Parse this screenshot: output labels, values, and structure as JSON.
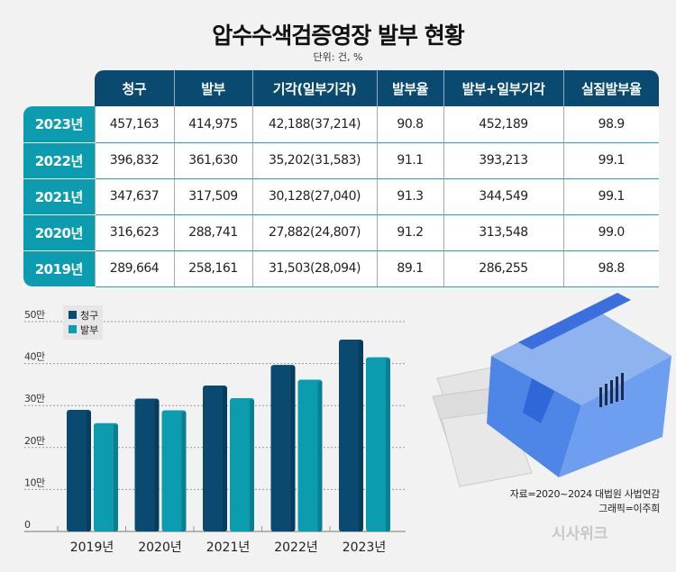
{
  "title": "압수수색검증영장 발부 현황",
  "unit": "단위: 건, %",
  "table": {
    "headers": [
      "청구",
      "발부",
      "기각(일부기각)",
      "발부율",
      "발부+일부기각",
      "실질발부율"
    ],
    "rows": [
      {
        "year": "2023년",
        "cells": [
          "457,163",
          "414,975",
          "42,188(37,214)",
          "90.8",
          "452,189",
          "98.9"
        ]
      },
      {
        "year": "2022년",
        "cells": [
          "396,832",
          "361,630",
          "35,202(31,583)",
          "91.1",
          "393,213",
          "99.1"
        ]
      },
      {
        "year": "2021년",
        "cells": [
          "347,637",
          "317,509",
          "30,128(27,040)",
          "91.3",
          "344,549",
          "99.1"
        ]
      },
      {
        "year": "2020년",
        "cells": [
          "316,623",
          "288,741",
          "27,882(24,807)",
          "91.2",
          "313,548",
          "99.0"
        ]
      },
      {
        "year": "2019년",
        "cells": [
          "289,664",
          "258,161",
          "31,503(28,094)",
          "89.1",
          "286,255",
          "98.8"
        ]
      }
    ]
  },
  "chart_data": {
    "type": "bar",
    "categories": [
      "2019년",
      "2020년",
      "2021년",
      "2022년",
      "2023년"
    ],
    "series": [
      {
        "name": "청구",
        "color": "#0a4a70",
        "values": [
          289664,
          316623,
          347637,
          396832,
          457163
        ]
      },
      {
        "name": "발부",
        "color": "#0b9cb0",
        "values": [
          258161,
          288741,
          317509,
          361630,
          414975
        ]
      }
    ],
    "ylim": [
      0,
      500000
    ],
    "yticks": [
      {
        "value": 0,
        "label": "0"
      },
      {
        "value": 100000,
        "label": "10만"
      },
      {
        "value": 200000,
        "label": "20만"
      },
      {
        "value": 300000,
        "label": "30만"
      },
      {
        "value": 400000,
        "label": "40만"
      },
      {
        "value": 500000,
        "label": "50만"
      }
    ],
    "grid": true,
    "legend": "top-left"
  },
  "source": "자료=2020~2024 대법원 사법연감",
  "credit": "그래픽=이주희",
  "logo": "시사위크"
}
